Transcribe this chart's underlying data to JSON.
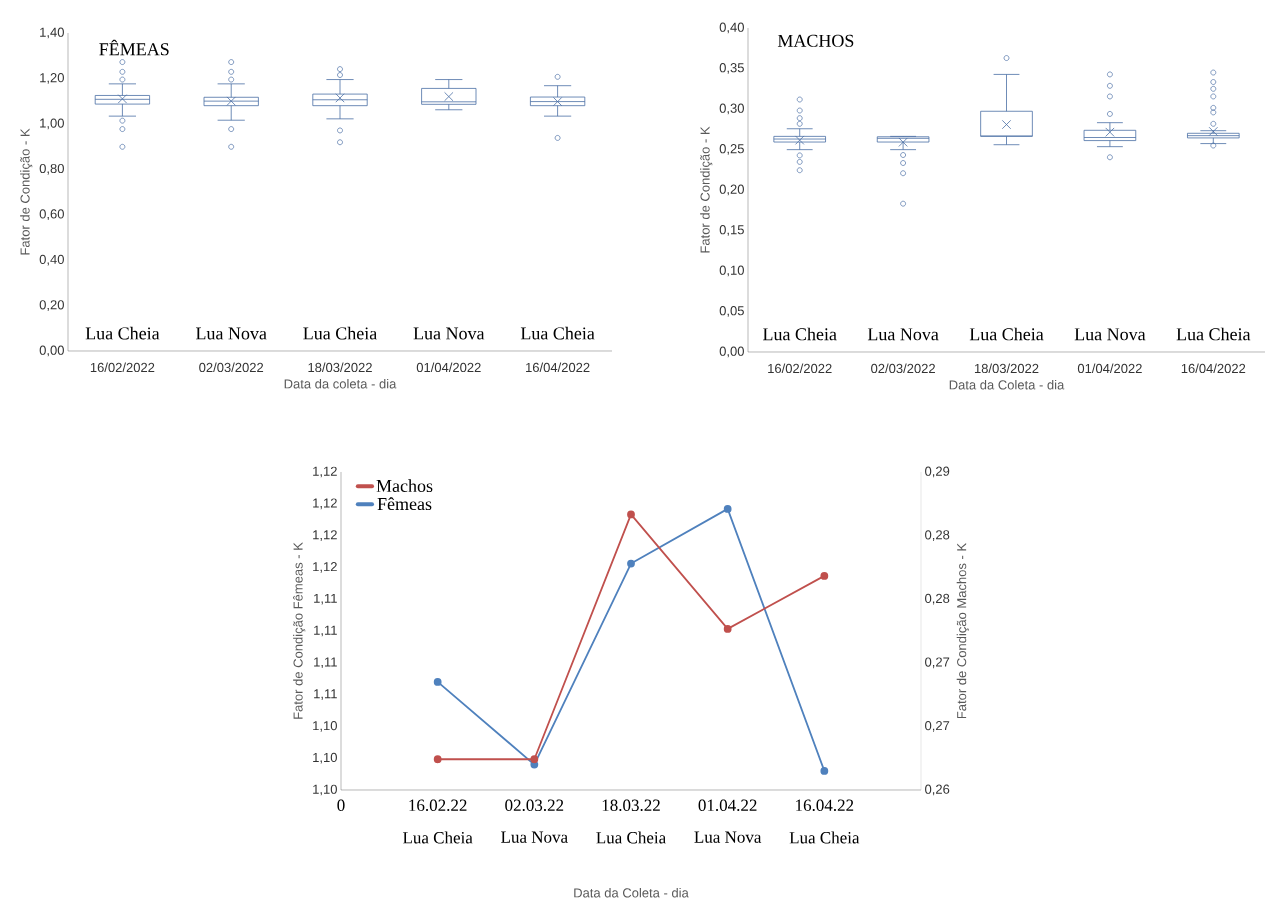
{
  "chart_data": [
    {
      "type": "box",
      "title": "FÊMEAS",
      "categories": [
        "16/02/2022",
        "02/03/2022",
        "18/03/2022",
        "01/04/2022",
        "16/04/2022"
      ],
      "color": "#4a6fa5",
      "boxes": [
        {
          "low": 1.034,
          "q1": 1.087,
          "median": 1.108,
          "q3": 1.125,
          "high": 1.176,
          "mean": 1.11,
          "outliers": [
            1.272,
            1.229,
            1.195,
            1.014,
            0.977,
            0.899
          ]
        },
        {
          "low": 1.016,
          "q1": 1.08,
          "median": 1.1,
          "q3": 1.117,
          "high": 1.176,
          "mean": 1.1,
          "outliers": [
            1.272,
            1.229,
            1.195,
            0.977,
            0.899
          ]
        },
        {
          "low": 1.022,
          "q1": 1.08,
          "median": 1.106,
          "q3": 1.131,
          "high": 1.195,
          "mean": 1.114,
          "outliers": [
            1.241,
            1.215,
            0.971,
            0.919
          ]
        },
        {
          "low": 1.062,
          "q1": 1.086,
          "median": 1.097,
          "q3": 1.156,
          "high": 1.195,
          "mean": 1.12
        },
        {
          "low": 1.034,
          "q1": 1.08,
          "median": 1.098,
          "q3": 1.118,
          "high": 1.168,
          "mean": 1.098,
          "outliers": [
            1.207,
            0.938
          ]
        }
      ],
      "xlabel": "Data da coleta - dia",
      "ylabel": "Fator de Condição - K",
      "ylim": [
        0,
        1.4
      ],
      "annotations": [
        "Lua Cheia",
        "Lua Nova",
        "Lua Cheia",
        "Lua Nova",
        "Lua Cheia"
      ],
      "yticks": [
        {
          "value": 0,
          "label": "0,00"
        },
        {
          "value": 0.2,
          "label": "0,20"
        },
        {
          "value": 0.4,
          "label": "0,40"
        },
        {
          "value": 0.6,
          "label": "0,60"
        },
        {
          "value": 0.8,
          "label": "0,80"
        },
        {
          "value": 1.0,
          "label": "1,00"
        },
        {
          "value": 1.2,
          "label": "1,20"
        },
        {
          "value": 1.4,
          "label": "1,40"
        }
      ]
    },
    {
      "type": "box",
      "title": "MACHOS",
      "categories": [
        "16/02/2022",
        "02/03/2022",
        "18/03/2022",
        "01/04/2022",
        "16/04/2022"
      ],
      "color": "#4a6fa5",
      "boxes": [
        {
          "low": 0.2498,
          "q1": 0.2592,
          "median": 0.2629,
          "q3": 0.2662,
          "high": 0.2756,
          "mean": 0.2615,
          "outliers": [
            0.3117,
            0.2981,
            0.2887,
            0.2817,
            0.2427,
            0.2347,
            0.2244
          ]
        },
        {
          "low": 0.2498,
          "q1": 0.2592,
          "median": 0.2638,
          "q3": 0.2657,
          "high": 0.2662,
          "mean": 0.259,
          "outliers": [
            0.2432,
            0.2333,
            0.2207,
            0.1831
          ]
        },
        {
          "low": 0.2559,
          "q1": 0.2662,
          "median": 0.2667,
          "q3": 0.2972,
          "high": 0.3427,
          "mean": 0.2808,
          "outliers": [
            0.3629
          ]
        },
        {
          "low": 0.2535,
          "q1": 0.261,
          "median": 0.2648,
          "q3": 0.2737,
          "high": 0.2831,
          "mean": 0.2714,
          "outliers": [
            0.3427,
            0.3286,
            0.3155,
            0.2939,
            0.2404
          ]
        },
        {
          "low": 0.2573,
          "q1": 0.2643,
          "median": 0.2671,
          "q3": 0.27,
          "high": 0.2732,
          "mean": 0.2723,
          "outliers": [
            0.345,
            0.3333,
            0.3249,
            0.3155,
            0.3014,
            0.2958,
            0.2817,
            0.2549
          ]
        }
      ],
      "xlabel": "Data da Coleta - dia",
      "ylabel": "Fator de Condição - K",
      "ylim": [
        0,
        0.4
      ],
      "annotations": [
        "Lua Cheia",
        "Lua Nova",
        "Lua Cheia",
        "Lua Nova",
        "Lua Cheia"
      ],
      "yticks": [
        {
          "value": 0,
          "label": "0,00"
        },
        {
          "value": 0.05,
          "label": "0,05"
        },
        {
          "value": 0.1,
          "label": "0,10"
        },
        {
          "value": 0.15,
          "label": "0,15"
        },
        {
          "value": 0.2,
          "label": "0,20"
        },
        {
          "value": 0.25,
          "label": "0,25"
        },
        {
          "value": 0.3,
          "label": "0,30"
        },
        {
          "value": 0.35,
          "label": "0,35"
        },
        {
          "value": 0.4,
          "label": "0,40"
        }
      ]
    },
    {
      "type": "line",
      "categories": [
        "0",
        "16.02.22",
        "02.03.22",
        "18.03.22",
        "01.04.22",
        "16.04.22",
        null
      ],
      "series": [
        {
          "name": "Machos",
          "color": "#c0504d",
          "axis": "y2",
          "values": [
            null,
            0.2629,
            0.2629,
            0.286,
            0.2752,
            0.2802,
            null
          ]
        },
        {
          "name": "Fêmeas",
          "color": "#4f81bd",
          "values": [
            null,
            1.1065,
            1.1,
            1.1158,
            1.1201,
            1.0995,
            null
          ]
        }
      ],
      "marker": "circle",
      "legend": "top left",
      "xlabel": "Data da Coleta - dia",
      "ylabel": "Fator de Condição Fêmeas - K",
      "y2label": "Fator de Condição Machos - K",
      "ylim": [
        1.098,
        1.123
      ],
      "yticks": [
        {
          "value": 1.098,
          "label": "1,10"
        },
        {
          "value": 1.1005,
          "label": "1,10"
        },
        {
          "value": 1.103,
          "label": "1,10"
        },
        {
          "value": 1.1055,
          "label": "1,11"
        },
        {
          "value": 1.108,
          "label": "1,11"
        },
        {
          "value": 1.1105,
          "label": "1,11"
        },
        {
          "value": 1.113,
          "label": "1,11"
        },
        {
          "value": 1.1155,
          "label": "1,12"
        },
        {
          "value": 1.118,
          "label": "1,12"
        },
        {
          "value": 1.1205,
          "label": "1,12"
        },
        {
          "value": 1.123,
          "label": "1,12"
        }
      ],
      "y2lim": [
        0.26,
        0.29
      ],
      "y2ticks": [
        {
          "value": 0.26,
          "label": "0,26"
        },
        {
          "value": 0.266,
          "label": "0,27"
        },
        {
          "value": 0.272,
          "label": "0,27"
        },
        {
          "value": 0.278,
          "label": "0,28"
        },
        {
          "value": 0.284,
          "label": "0,28"
        },
        {
          "value": 0.29,
          "label": "0,29"
        }
      ],
      "annotations": [
        "Lua Cheia",
        "Lua Nova",
        "Lua Cheia",
        "Lua Nova",
        "Lua Cheia"
      ]
    }
  ]
}
